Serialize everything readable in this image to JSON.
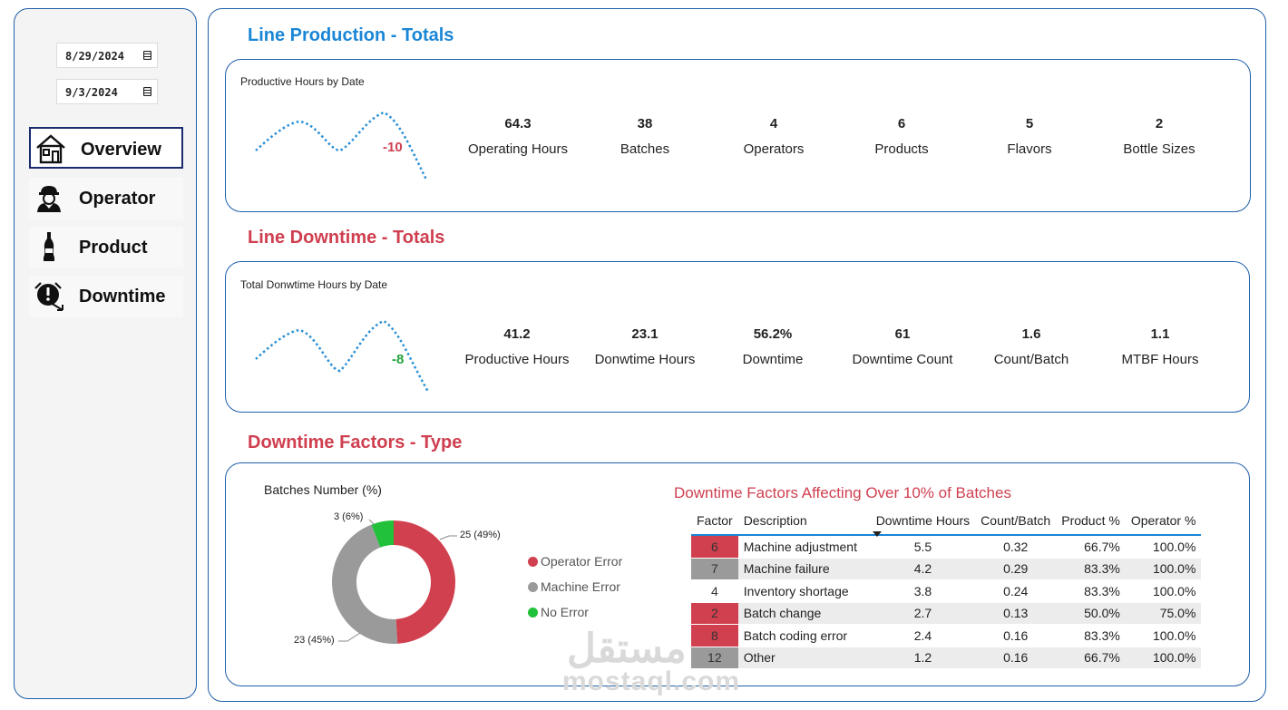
{
  "sidebar": {
    "start_date": "8/29/2024",
    "end_date": "9/3/2024",
    "nav": [
      {
        "label": "Overview",
        "icon": "house-icon",
        "active": true
      },
      {
        "label": "Operator",
        "icon": "worker-helmet-icon",
        "active": false
      },
      {
        "label": "Product",
        "icon": "bottle-icon",
        "active": false
      },
      {
        "label": "Downtime",
        "icon": "downtime-clock-icon",
        "active": false
      }
    ]
  },
  "production": {
    "title": "Line Production - Totals",
    "spark_title": "Productive Hours by Date",
    "spark_delta": "-10",
    "kpis": [
      {
        "value": "64.3",
        "label": "Operating Hours"
      },
      {
        "value": "38",
        "label": "Batches"
      },
      {
        "value": "4",
        "label": "Operators"
      },
      {
        "value": "6",
        "label": "Products"
      },
      {
        "value": "5",
        "label": "Flavors"
      },
      {
        "value": "2",
        "label": "Bottle Sizes"
      }
    ]
  },
  "downtime": {
    "title": "Line Downtime - Totals",
    "spark_title": "Total Donwtime Hours by Date",
    "spark_delta": "-8",
    "kpis": [
      {
        "value": "41.2",
        "label": "Productive Hours"
      },
      {
        "value": "23.1",
        "label": "Donwtime Hours"
      },
      {
        "value": "56.2%",
        "label": "Downtime"
      },
      {
        "value": "61",
        "label": "Downtime Count"
      },
      {
        "value": "1.6",
        "label": "Count/Batch"
      },
      {
        "value": "1.1",
        "label": "MTBF Hours"
      }
    ]
  },
  "factors": {
    "title": "Downtime Factors - Type",
    "donut_title": "Batches Number (%)",
    "donut": [
      {
        "name": "Operator Error",
        "value": 25,
        "label": "25 (49%)",
        "color": "#d1404f"
      },
      {
        "name": "Machine Error",
        "value": 23,
        "label": "23 (45%)",
        "color": "#9a9a9a"
      },
      {
        "name": "No Error",
        "value": 3,
        "label": "3 (6%)",
        "color": "#22c13a"
      }
    ],
    "table_title": "Downtime Factors Affecting Over 10% of Batches",
    "columns": [
      "Factor",
      "Description",
      "Downtime Hours",
      "Count/Batch",
      "Product %",
      "Operator %"
    ],
    "rows": [
      {
        "factor": "6",
        "description": "Machine adjustment",
        "hours": "5.5",
        "count": "0.32",
        "product": "66.7%",
        "operator": "100.0%",
        "color": "#d1404f"
      },
      {
        "factor": "7",
        "description": "Machine failure",
        "hours": "4.2",
        "count": "0.29",
        "product": "83.3%",
        "operator": "100.0%",
        "color": "#9a9a9a"
      },
      {
        "factor": "4",
        "description": "Inventory shortage",
        "hours": "3.8",
        "count": "0.24",
        "product": "83.3%",
        "operator": "100.0%",
        "color": "#ffffff"
      },
      {
        "factor": "2",
        "description": "Batch change",
        "hours": "2.7",
        "count": "0.13",
        "product": "50.0%",
        "operator": "75.0%",
        "color": "#d1404f"
      },
      {
        "factor": "8",
        "description": "Batch coding error",
        "hours": "2.4",
        "count": "0.16",
        "product": "83.3%",
        "operator": "100.0%",
        "color": "#d1404f"
      },
      {
        "factor": "12",
        "description": "Other",
        "hours": "1.2",
        "count": "0.16",
        "product": "66.7%",
        "operator": "100.0%",
        "color": "#9a9a9a"
      }
    ]
  },
  "watermark": {
    "latin": "mostaql.com",
    "arabic": "مستقل"
  }
}
